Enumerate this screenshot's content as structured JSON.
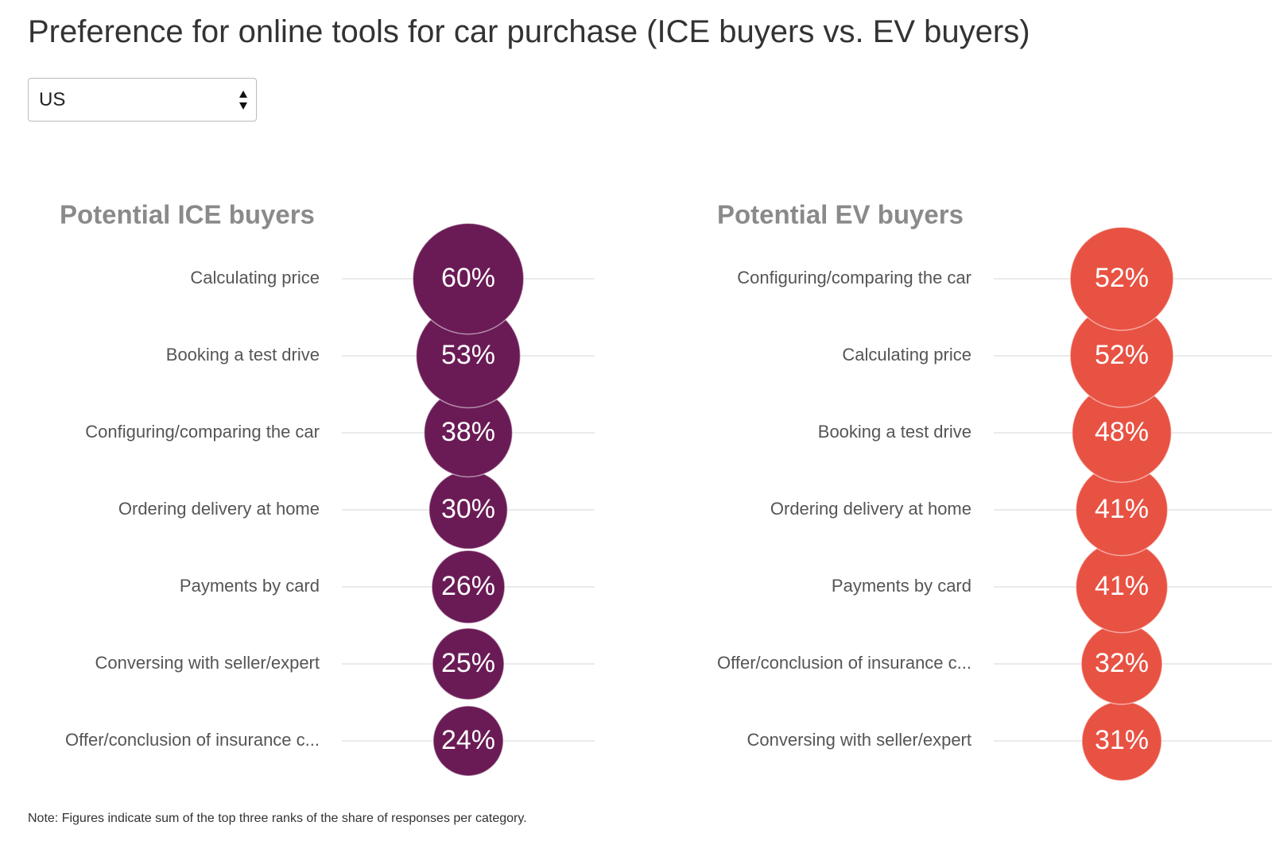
{
  "title": "Preference for online tools for car purchase (ICE buyers vs. EV buyers)",
  "filter": {
    "selected": "US"
  },
  "chart_data": [
    {
      "type": "bubble",
      "title": "Potential ICE buyers",
      "categories": [
        "Calculating price",
        "Booking a test drive",
        "Configuring/comparing the car",
        "Ordering delivery at home",
        "Payments by card",
        "Conversing with seller/expert",
        "Offer/conclusion of insurance c..."
      ],
      "values": [
        60,
        53,
        38,
        30,
        26,
        25,
        24
      ],
      "value_labels": [
        "60%",
        "53%",
        "38%",
        "30%",
        "26%",
        "25%",
        "24%"
      ],
      "color": "#6a1b55"
    },
    {
      "type": "bubble",
      "title": "Potential EV buyers",
      "categories": [
        "Configuring/comparing the car",
        "Calculating price",
        "Booking a test drive",
        "Ordering delivery at home",
        "Payments by card",
        "Offer/conclusion of insurance c...",
        "Conversing with seller/expert"
      ],
      "values": [
        52,
        52,
        48,
        41,
        41,
        32,
        31
      ],
      "value_labels": [
        "52%",
        "52%",
        "48%",
        "41%",
        "41%",
        "32%",
        "31%"
      ],
      "color": "#e85243"
    }
  ],
  "note": "Note: Figures indicate sum of the top three ranks of the share of responses per category."
}
